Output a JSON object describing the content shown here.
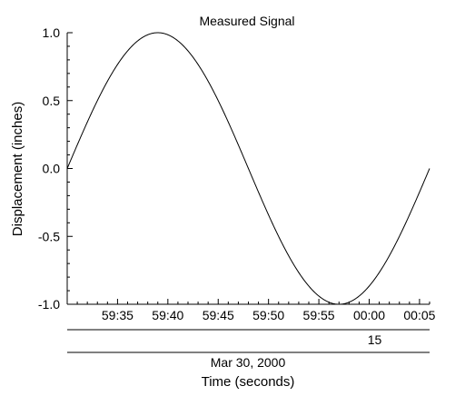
{
  "chart_data": {
    "type": "line",
    "title": "Measured Signal",
    "xlabel": "Time (seconds)",
    "ylabel": "Displacement (inches)",
    "x_start": "59:30",
    "x_end": "00:06",
    "xlim_seconds": [
      -30,
      6
    ],
    "ylim": [
      -1.0,
      1.0
    ],
    "y_ticks": [
      1.0,
      0.5,
      0.0,
      -0.5,
      -1.0
    ],
    "y_tick_labels": [
      "1.0",
      "0.5",
      "0.0",
      "-0.5",
      "-1.0"
    ],
    "x_ticks": [
      {
        "label": "59:35",
        "t": -25
      },
      {
        "label": "59:40",
        "t": -20
      },
      {
        "label": "59:45",
        "t": -15
      },
      {
        "label": "59:50",
        "t": -10
      },
      {
        "label": "59:55",
        "t": -5
      },
      {
        "label": "00:00",
        "t": 0
      },
      {
        "label": "00:05",
        "t": 5
      }
    ],
    "hour_label": "15",
    "date_label": "Mar 30, 2000",
    "series": [
      {
        "shape": "sine",
        "amplitude": 1.0,
        "period_seconds": 36,
        "phase_start_seconds": -30
      }
    ],
    "grid": false,
    "legend": "none"
  }
}
